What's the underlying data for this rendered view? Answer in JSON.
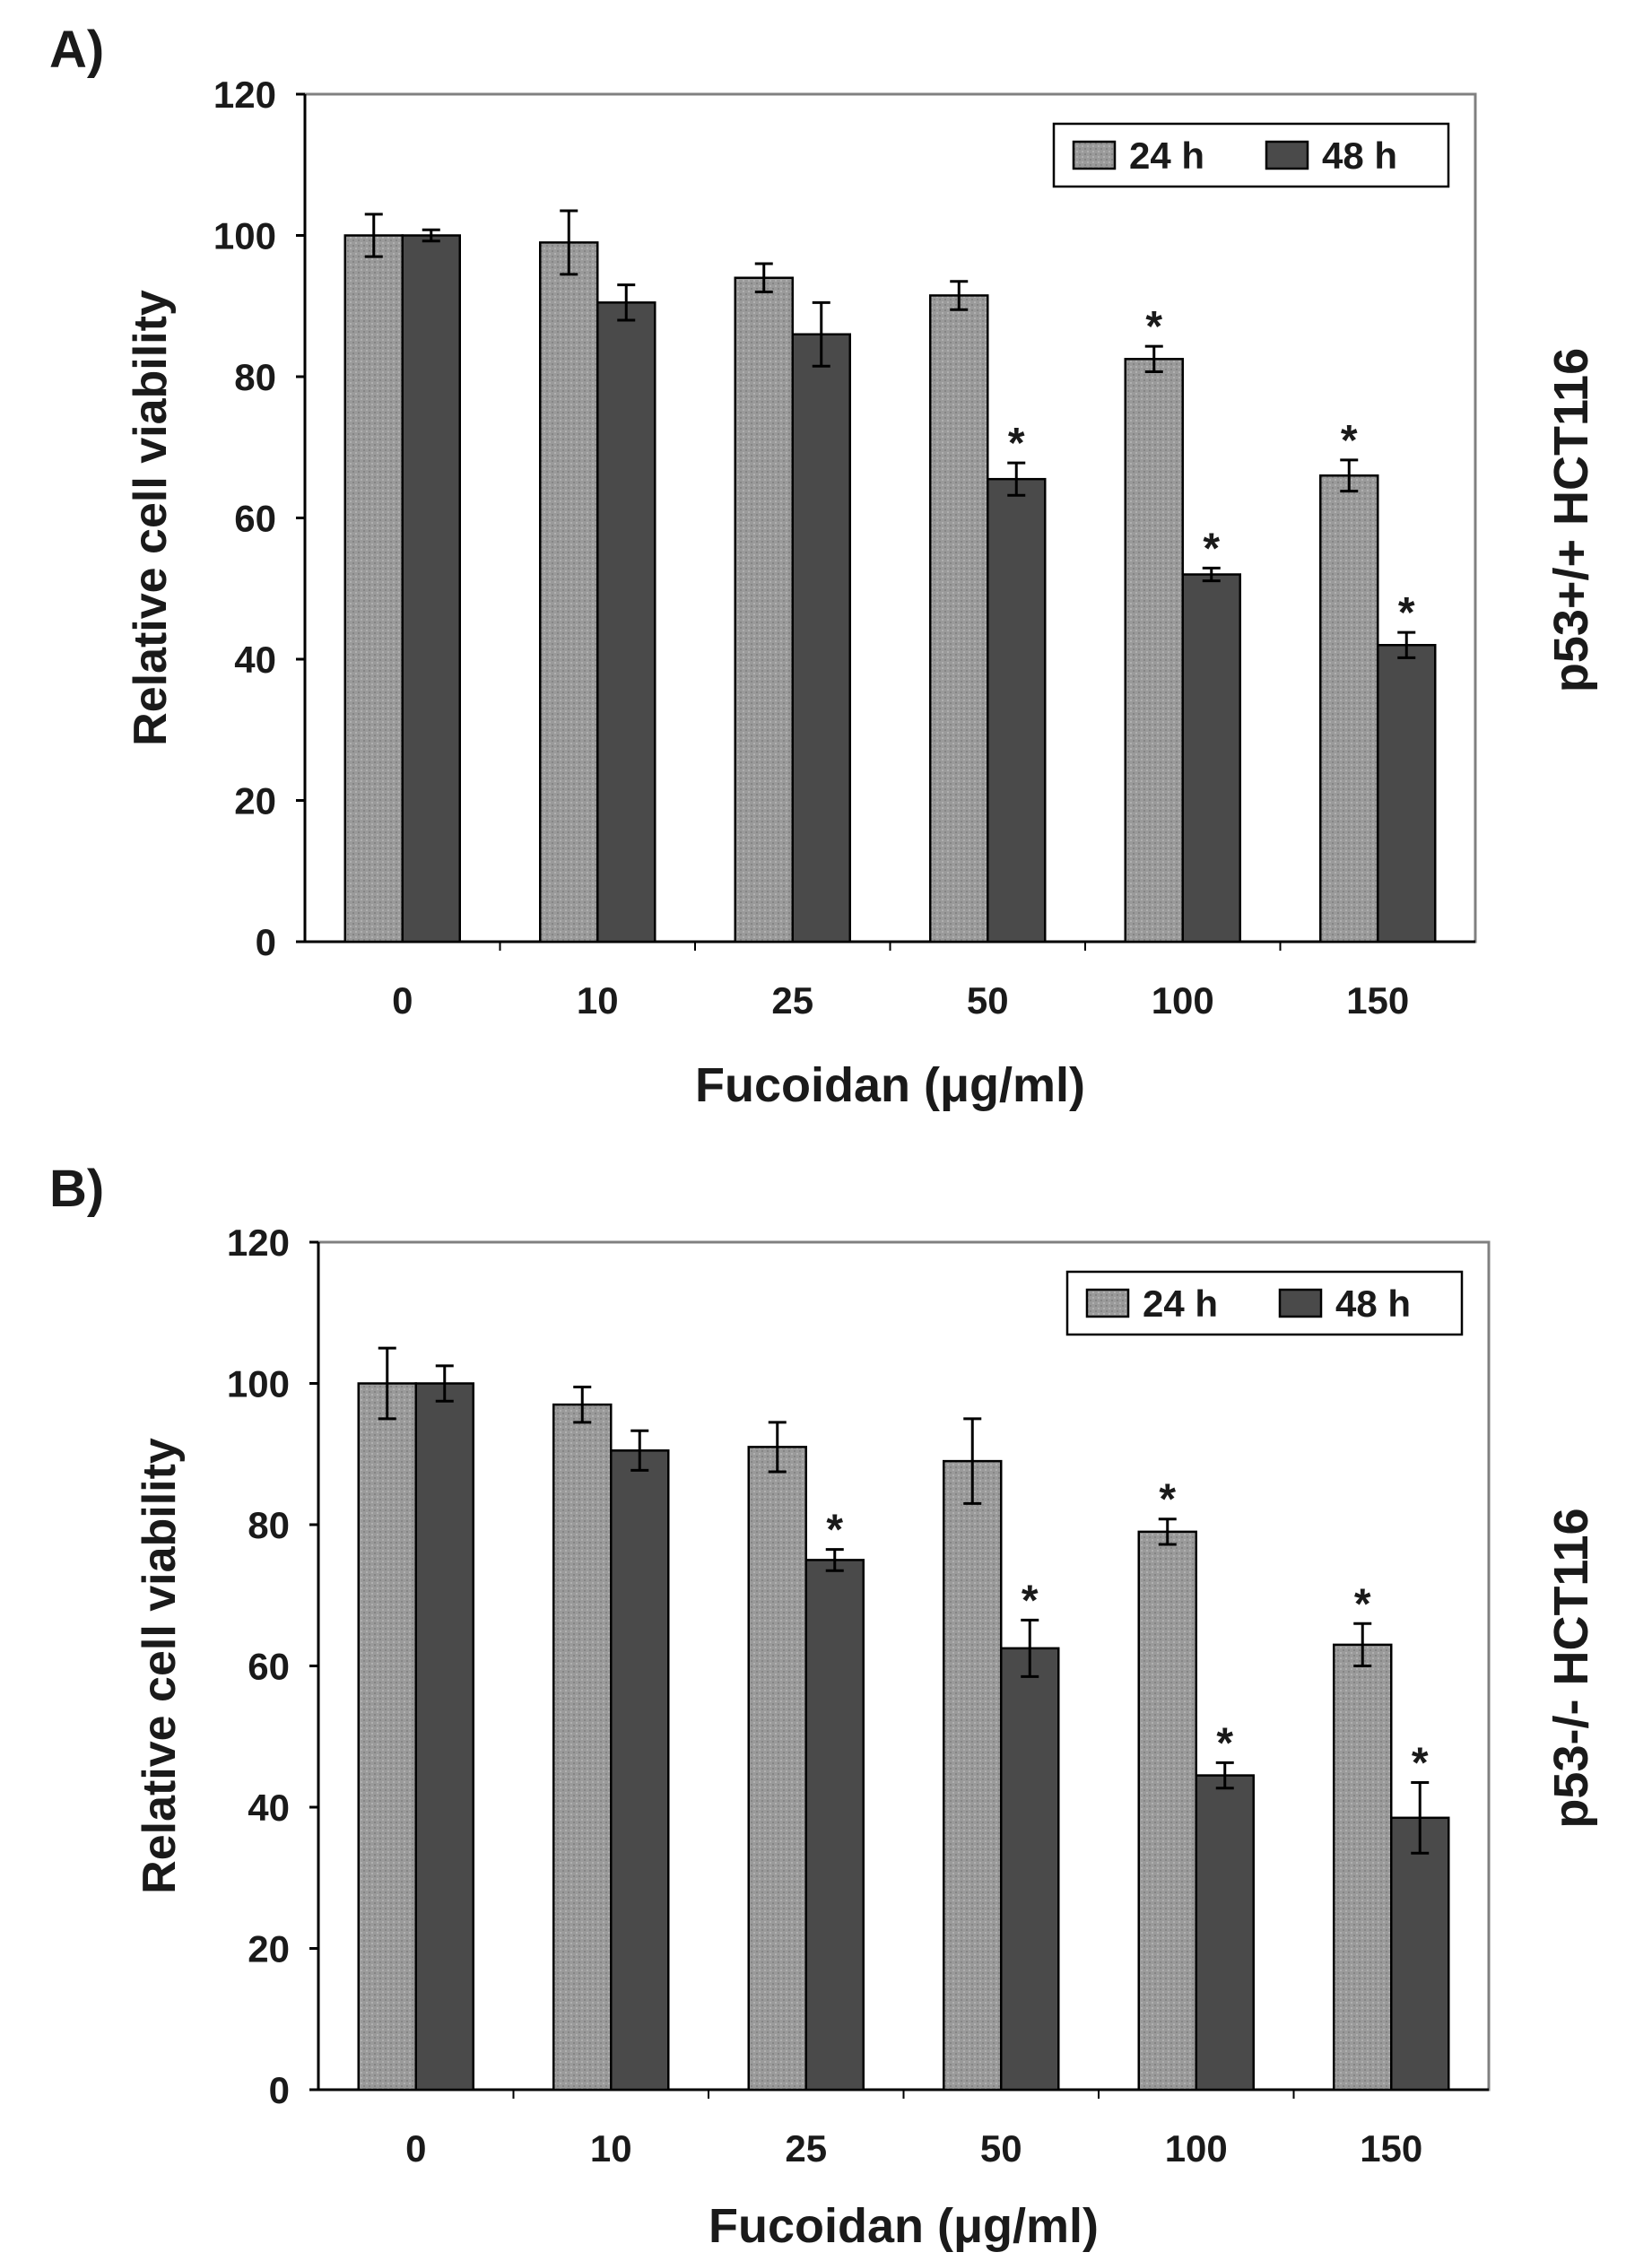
{
  "chart_data": [
    {
      "type": "bar",
      "panel_label": "A)",
      "side_label": "p53+/+ HCT116",
      "xlabel": "Fucoidan (μg/ml)",
      "ylabel": "Relative cell viability",
      "ylim": [
        0,
        120
      ],
      "yticks": [
        "0",
        "20",
        "40",
        "60",
        "80",
        "100",
        "120"
      ],
      "categories": [
        "0",
        "10",
        "25",
        "50",
        "100",
        "150"
      ],
      "legend_position": "top-right",
      "series": [
        {
          "name": "24 h",
          "color": "#9a9a9a",
          "values": [
            100,
            99,
            94,
            91.5,
            82.5,
            66
          ],
          "errors": [
            3,
            4.5,
            2,
            2,
            1.8,
            2.2
          ],
          "significant": [
            false,
            false,
            false,
            false,
            true,
            true
          ]
        },
        {
          "name": "48 h",
          "color": "#4a4a4a",
          "values": [
            100,
            90.5,
            86,
            65.5,
            52,
            42
          ],
          "errors": [
            0.8,
            2.5,
            4.5,
            2.3,
            0.9,
            1.8
          ],
          "significant": [
            false,
            false,
            false,
            true,
            true,
            true
          ]
        }
      ],
      "annotation_symbol": "*"
    },
    {
      "type": "bar",
      "panel_label": "B)",
      "side_label": "p53-/- HCT116",
      "xlabel": "Fucoidan (μg/ml)",
      "ylabel": "Relative cell viability",
      "ylim": [
        0,
        120
      ],
      "yticks": [
        "0",
        "20",
        "40",
        "60",
        "80",
        "100",
        "120"
      ],
      "categories": [
        "0",
        "10",
        "25",
        "50",
        "100",
        "150"
      ],
      "legend_position": "top-right",
      "series": [
        {
          "name": "24 h",
          "color": "#9a9a9a",
          "values": [
            100,
            97,
            91,
            89,
            79,
            63
          ],
          "errors": [
            5,
            2.5,
            3.5,
            6,
            1.8,
            3
          ],
          "significant": [
            false,
            false,
            false,
            false,
            true,
            true
          ]
        },
        {
          "name": "48 h",
          "color": "#4a4a4a",
          "values": [
            100,
            90.5,
            75,
            62.5,
            44.5,
            38.5
          ],
          "errors": [
            2.5,
            2.8,
            1.5,
            4,
            1.8,
            5
          ],
          "significant": [
            false,
            false,
            true,
            true,
            true,
            true
          ]
        }
      ],
      "annotation_symbol": "*"
    }
  ]
}
